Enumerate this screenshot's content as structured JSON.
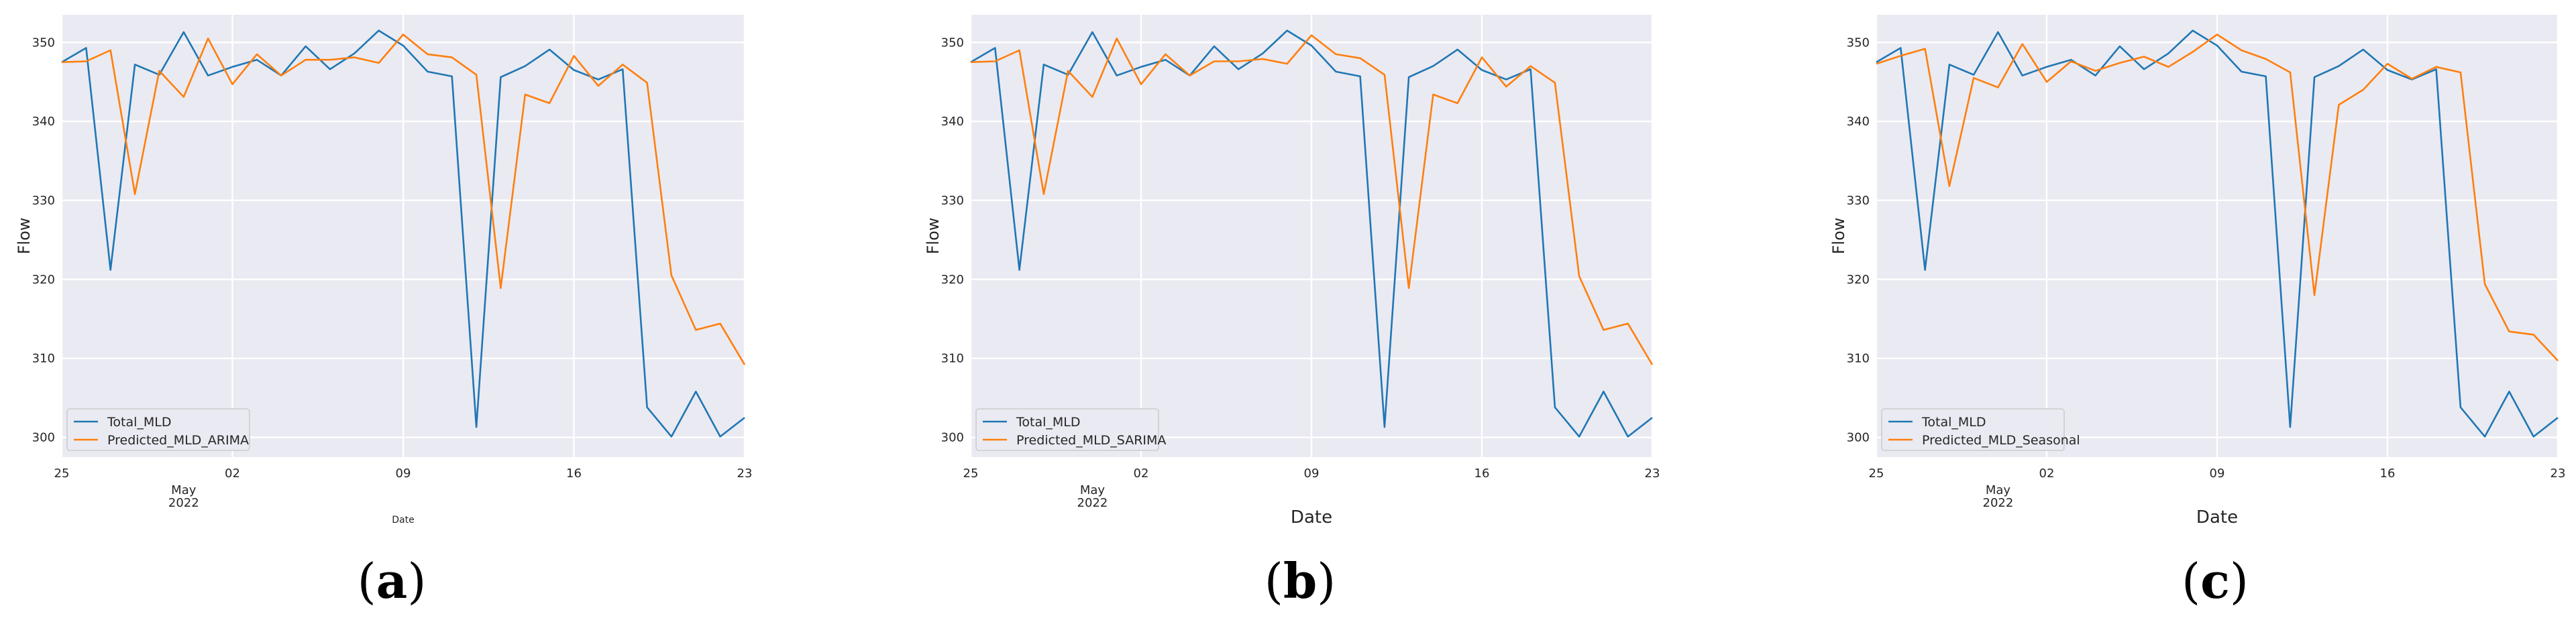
{
  "colors": {
    "actual": "#1f77b4",
    "predicted": "#ff7f0e",
    "plot_background": "#eaeaf2",
    "grid": "#ffffff"
  },
  "chart_data": [
    {
      "type": "line",
      "panel_label": "a",
      "xlabel": "Date",
      "ylabel": "Flow",
      "x": [
        "2022-04-25",
        "2022-04-26",
        "2022-04-27",
        "2022-04-28",
        "2022-04-29",
        "2022-04-30",
        "2022-05-01",
        "2022-05-02",
        "2022-05-03",
        "2022-05-04",
        "2022-05-05",
        "2022-05-06",
        "2022-05-07",
        "2022-05-08",
        "2022-05-09",
        "2022-05-10",
        "2022-05-11",
        "2022-05-12",
        "2022-05-13",
        "2022-05-14",
        "2022-05-15",
        "2022-05-16",
        "2022-05-17",
        "2022-05-18",
        "2022-05-19",
        "2022-05-20",
        "2022-05-21",
        "2022-05-22",
        "2022-05-23"
      ],
      "xlim": [
        "2022-04-25",
        "2022-05-23"
      ],
      "ylim": [
        297.5,
        353.5
      ],
      "x_ticks": [
        {
          "date": "2022-04-25",
          "label": "25"
        },
        {
          "date": "2022-05-02",
          "label": "02"
        },
        {
          "date": "2022-05-09",
          "label": "09"
        },
        {
          "date": "2022-05-16",
          "label": "16"
        },
        {
          "date": "2022-05-23",
          "label": "23"
        }
      ],
      "x_month_label": {
        "date": "2022-04-30",
        "month": "May",
        "year": "2022"
      },
      "y_ticks": [
        300,
        310,
        320,
        330,
        340,
        350
      ],
      "grid": true,
      "legend_position": "lower-left",
      "series": [
        {
          "name": "Total_MLD",
          "color_key": "actual",
          "values": [
            347.5,
            349.3,
            321.2,
            347.2,
            345.9,
            351.3,
            345.8,
            346.9,
            347.8,
            345.8,
            349.5,
            346.6,
            348.6,
            351.5,
            349.6,
            346.3,
            345.7,
            301.3,
            345.6,
            347.0,
            349.1,
            346.5,
            345.3,
            346.6,
            303.8,
            300.1,
            305.8,
            300.1,
            302.5
          ]
        },
        {
          "name": "Predicted_MLD_ARIMA",
          "color_key": "predicted",
          "values": [
            347.5,
            347.6,
            349.0,
            330.8,
            346.4,
            343.1,
            350.5,
            344.7,
            348.5,
            345.8,
            347.8,
            347.8,
            348.1,
            347.4,
            351.0,
            348.5,
            348.1,
            345.9,
            318.9,
            343.4,
            342.3,
            348.3,
            344.5,
            347.2,
            344.9,
            320.5,
            313.6,
            314.4,
            309.2
          ]
        }
      ]
    },
    {
      "type": "line",
      "panel_label": "b",
      "xlabel": "Date",
      "ylabel": "Flow",
      "x": [
        "2022-04-25",
        "2022-04-26",
        "2022-04-27",
        "2022-04-28",
        "2022-04-29",
        "2022-04-30",
        "2022-05-01",
        "2022-05-02",
        "2022-05-03",
        "2022-05-04",
        "2022-05-05",
        "2022-05-06",
        "2022-05-07",
        "2022-05-08",
        "2022-05-09",
        "2022-05-10",
        "2022-05-11",
        "2022-05-12",
        "2022-05-13",
        "2022-05-14",
        "2022-05-15",
        "2022-05-16",
        "2022-05-17",
        "2022-05-18",
        "2022-05-19",
        "2022-05-20",
        "2022-05-21",
        "2022-05-22",
        "2022-05-23"
      ],
      "xlim": [
        "2022-04-25",
        "2022-05-23"
      ],
      "ylim": [
        297.5,
        353.5
      ],
      "x_ticks": [
        {
          "date": "2022-04-25",
          "label": "25"
        },
        {
          "date": "2022-05-02",
          "label": "02"
        },
        {
          "date": "2022-05-09",
          "label": "09"
        },
        {
          "date": "2022-05-16",
          "label": "16"
        },
        {
          "date": "2022-05-23",
          "label": "23"
        }
      ],
      "x_month_label": {
        "date": "2022-04-30",
        "month": "May",
        "year": "2022"
      },
      "y_ticks": [
        300,
        310,
        320,
        330,
        340,
        350
      ],
      "grid": true,
      "legend_position": "lower-left",
      "series": [
        {
          "name": "Total_MLD",
          "color_key": "actual",
          "values": [
            347.5,
            349.3,
            321.2,
            347.2,
            345.9,
            351.3,
            345.8,
            346.9,
            347.8,
            345.8,
            349.5,
            346.6,
            348.6,
            351.5,
            349.6,
            346.3,
            345.7,
            301.3,
            345.6,
            347.0,
            349.1,
            346.5,
            345.3,
            346.6,
            303.8,
            300.1,
            305.8,
            300.1,
            302.5
          ]
        },
        {
          "name": "Predicted_MLD_SARIMA",
          "color_key": "predicted",
          "values": [
            347.5,
            347.6,
            349.0,
            330.8,
            346.4,
            343.1,
            350.5,
            344.7,
            348.5,
            345.8,
            347.6,
            347.6,
            347.9,
            347.3,
            350.9,
            348.5,
            348.0,
            345.9,
            318.9,
            343.4,
            342.3,
            348.1,
            344.4,
            347.0,
            344.9,
            320.4,
            313.6,
            314.4,
            309.2
          ]
        }
      ]
    },
    {
      "type": "line",
      "panel_label": "c",
      "xlabel": "Date",
      "ylabel": "Flow",
      "x": [
        "2022-04-25",
        "2022-04-26",
        "2022-04-27",
        "2022-04-28",
        "2022-04-29",
        "2022-04-30",
        "2022-05-01",
        "2022-05-02",
        "2022-05-03",
        "2022-05-04",
        "2022-05-05",
        "2022-05-06",
        "2022-05-07",
        "2022-05-08",
        "2022-05-09",
        "2022-05-10",
        "2022-05-11",
        "2022-05-12",
        "2022-05-13",
        "2022-05-14",
        "2022-05-15",
        "2022-05-16",
        "2022-05-17",
        "2022-05-18",
        "2022-05-19",
        "2022-05-20",
        "2022-05-21",
        "2022-05-22",
        "2022-05-23"
      ],
      "xlim": [
        "2022-04-25",
        "2022-05-23"
      ],
      "ylim": [
        297.5,
        353.5
      ],
      "x_ticks": [
        {
          "date": "2022-04-25",
          "label": "25"
        },
        {
          "date": "2022-05-02",
          "label": "02"
        },
        {
          "date": "2022-05-09",
          "label": "09"
        },
        {
          "date": "2022-05-16",
          "label": "16"
        },
        {
          "date": "2022-05-23",
          "label": "23"
        }
      ],
      "x_month_label": {
        "date": "2022-04-30",
        "month": "May",
        "year": "2022"
      },
      "y_ticks": [
        300,
        310,
        320,
        330,
        340,
        350
      ],
      "grid": true,
      "legend_position": "lower-left",
      "series": [
        {
          "name": "Total_MLD",
          "color_key": "actual",
          "values": [
            347.5,
            349.3,
            321.2,
            347.2,
            345.9,
            351.3,
            345.8,
            346.9,
            347.8,
            345.8,
            349.5,
            346.6,
            348.6,
            351.5,
            349.6,
            346.3,
            345.7,
            301.3,
            345.6,
            347.0,
            349.1,
            346.5,
            345.3,
            346.6,
            303.8,
            300.1,
            305.8,
            300.1,
            302.5
          ]
        },
        {
          "name": "Predicted_MLD_Seasonal",
          "color_key": "predicted",
          "values": [
            347.3,
            348.3,
            349.2,
            331.8,
            345.5,
            344.3,
            349.8,
            345.0,
            347.6,
            346.4,
            347.4,
            348.2,
            346.9,
            348.8,
            351.0,
            349.0,
            347.9,
            346.2,
            318.0,
            342.1,
            344.0,
            347.3,
            345.4,
            346.9,
            346.2,
            319.4,
            313.4,
            313.0,
            309.7
          ]
        }
      ]
    }
  ]
}
